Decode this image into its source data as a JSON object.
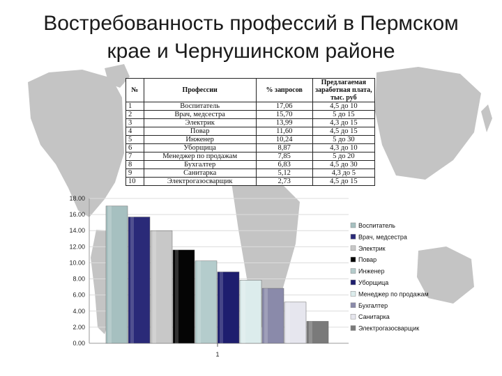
{
  "slide": {
    "title_line1": "Востребованность профессий в Пермском",
    "title_line2": "крае и Чернушинском районе"
  },
  "table": {
    "headers": [
      "№",
      "Профессии",
      "% запросов",
      "Предлагаемая заработная плата, тыс. руб"
    ],
    "rows": [
      [
        "1",
        "Воспитатель",
        "17,06",
        "4,5 до 10"
      ],
      [
        "2",
        "Врач, медсестра",
        "15,70",
        "5 до 15"
      ],
      [
        "3",
        "Электрик",
        "13,99",
        "4,3 до 15"
      ],
      [
        "4",
        "Повар",
        "11,60",
        "4,5 до 15"
      ],
      [
        "5",
        "Инженер",
        "10,24",
        "5 до 30"
      ],
      [
        "6",
        "Уборщица",
        "8,87",
        "4,3 до 10"
      ],
      [
        "7",
        "Менеджер по продажам",
        "7,85",
        "5 до 20"
      ],
      [
        "8",
        "Бухгалтер",
        "6,83",
        "4,5 до 30"
      ],
      [
        "9",
        "Санитарка",
        "5,12",
        "4,3 до 5"
      ],
      [
        "10",
        "Электрогазосварщик",
        "2,73",
        "4,5 до 15"
      ]
    ]
  },
  "colors": {
    "bars": [
      "#a6c0c0",
      "#2a2a78",
      "#c8c8c8",
      "#050505",
      "#b4cccc",
      "#1e1e6e",
      "#dcecec",
      "#8a8aaa",
      "#e6e6ee",
      "#7a7a7a"
    ],
    "map": "#c4c4c4"
  },
  "chart_data": {
    "type": "bar",
    "categories": [
      "1"
    ],
    "series": [
      {
        "name": "Воспитатель",
        "values": [
          17.06
        ]
      },
      {
        "name": "Врач, медсестра",
        "values": [
          15.7
        ]
      },
      {
        "name": "Электрик",
        "values": [
          13.99
        ]
      },
      {
        "name": "Повар",
        "values": [
          11.6
        ]
      },
      {
        "name": "Инженер",
        "values": [
          10.24
        ]
      },
      {
        "name": "Уборщица",
        "values": [
          8.87
        ]
      },
      {
        "name": "Менеджер по продажам",
        "values": [
          7.85
        ]
      },
      {
        "name": "Бухгалтер",
        "values": [
          6.83
        ]
      },
      {
        "name": "Санитарка",
        "values": [
          5.12
        ]
      },
      {
        "name": "Элeктрогазосварщик",
        "values": [
          2.73
        ]
      }
    ],
    "yticks": [
      "0.00",
      "2.00",
      "4.00",
      "6.00",
      "8.00",
      "10.00",
      "12.00",
      "14.00",
      "16.00",
      "18.00"
    ],
    "ylim": [
      0,
      18
    ],
    "grid": true,
    "legend": "right"
  }
}
